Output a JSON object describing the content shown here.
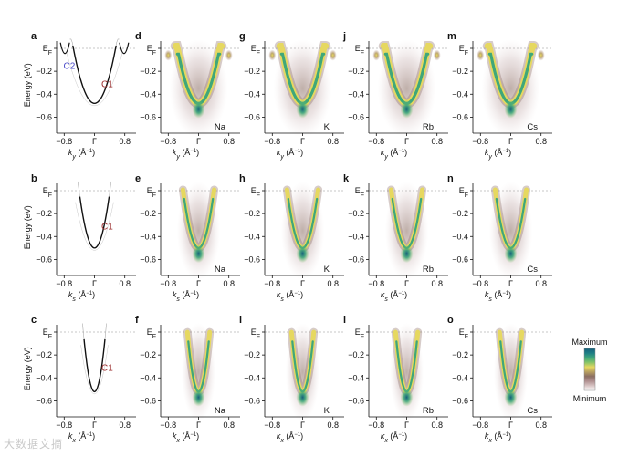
{
  "axes": {
    "energy_label": "Energy (eV)",
    "ef": "E",
    "ef_sub": "F",
    "energy_ticks": [
      "−0.2",
      "−0.4",
      "−0.6"
    ],
    "k_ticks": [
      "−0.8",
      "Γ",
      "0.8"
    ],
    "row_k": [
      "y",
      "s",
      "x"
    ],
    "k_unit": " (Å",
    "k_unit_sup": "−1",
    "k_unit_end": ")"
  },
  "theory_labels": {
    "c1": "C1",
    "c2": "C2"
  },
  "colorbar": {
    "max_label": "Maximum",
    "min_label": "Minimum"
  },
  "panel_letters": [
    [
      "a",
      "d",
      "g",
      "j",
      "m"
    ],
    [
      "b",
      "e",
      "h",
      "k",
      "n"
    ],
    [
      "c",
      "f",
      "i",
      "l",
      "o"
    ]
  ],
  "alkali": [
    "Na",
    "K",
    "Rb",
    "Cs"
  ],
  "watermark": "大数据文摘",
  "colors": {
    "c1": "#9a2a2a",
    "c2": "#4a4ac8",
    "cmap": [
      "#ffffff",
      "#d8c4c4",
      "#b09090",
      "#8b6e63",
      "#b9a060",
      "#e6d860",
      "#86c468",
      "#3fa77a",
      "#1e7e86",
      "#155f7a"
    ]
  }
}
